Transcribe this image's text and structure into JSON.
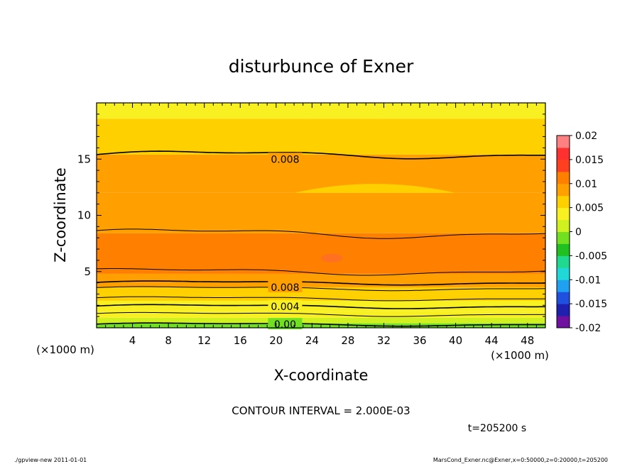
{
  "chart_data": {
    "type": "heatmap",
    "title": "disturbunce of Exner",
    "xlabel": "X-coordinate",
    "ylabel": "Z-coordinate",
    "x_unit": "(×1000 m)",
    "y_unit": "(×1000 m)",
    "xlim": [
      0,
      50
    ],
    "ylim": [
      0,
      20
    ],
    "x_ticks": [
      4,
      8,
      12,
      16,
      20,
      24,
      28,
      32,
      36,
      40,
      44,
      48
    ],
    "y_ticks": [
      5,
      10,
      15
    ],
    "colorbar": {
      "ticks": [
        "0.02",
        "0.015",
        "0.01",
        "0.005",
        "0",
        "-0.005",
        "-0.01",
        "-0.015",
        "-0.02"
      ],
      "range": [
        -0.02,
        0.02
      ],
      "step": 0.0025,
      "colors": [
        "#7010a0",
        "#2020b0",
        "#2050e0",
        "#20a0f0",
        "#20d8d8",
        "#20d890",
        "#20c020",
        "#70e020",
        "#d0f020",
        "#f8f020",
        "#ffd000",
        "#ffa000",
        "#ff8000",
        "#ff4020",
        "#ff3030",
        "#ff8080"
      ]
    },
    "contour_labels": [
      {
        "x": 21,
        "z": 15.0,
        "text": "0.008"
      },
      {
        "x": 21,
        "z": 3.6,
        "text": "0.008"
      },
      {
        "x": 21,
        "z": 1.9,
        "text": "0.004"
      },
      {
        "x": 21,
        "z": 0.3,
        "text": "0.00"
      }
    ],
    "contour_interval_text": "CONTOUR INTERVAL = 2.000E-03",
    "time_text": "t=205200 s"
  },
  "footer": {
    "left": "./gpview-new  2011-01-01",
    "right": "MarsCond_Exner.nc@Exner,x=0:50000,z=0:20000,t=205200"
  }
}
